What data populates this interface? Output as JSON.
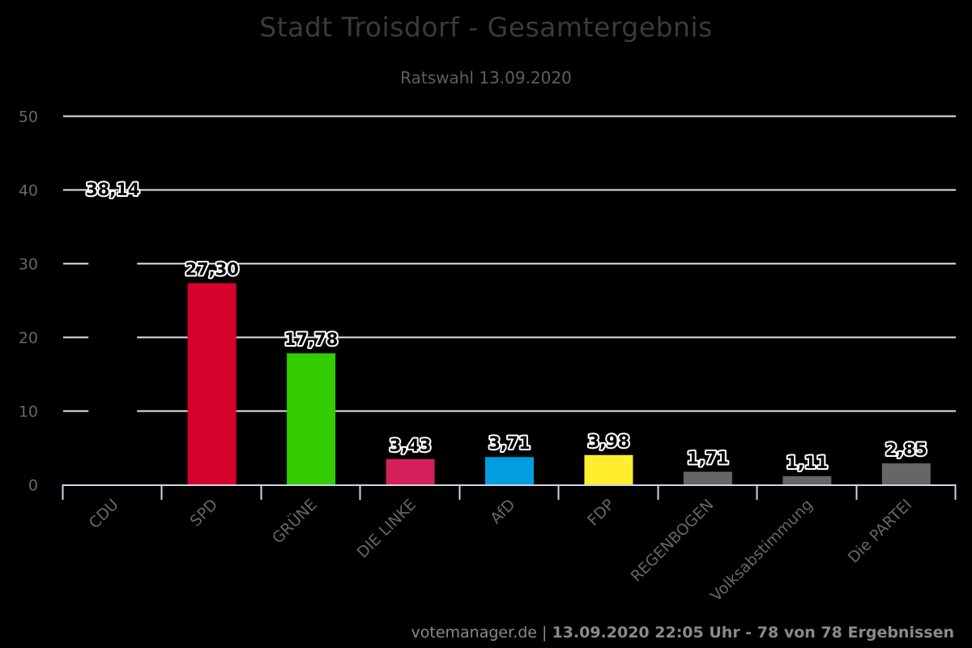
{
  "header": {
    "title": "Stadt Troisdorf - Gesamtergebnis",
    "subtitle": "Ratswahl 13.09.2020"
  },
  "footer": {
    "source": "votemanager.de",
    "separator": "|",
    "status": "13.09.2020 22:05 Uhr - 78 von 78 Ergebnissen"
  },
  "chart_data": {
    "type": "bar",
    "title": "Stadt Troisdorf - Gesamtergebnis",
    "subtitle": "Ratswahl 13.09.2020",
    "xlabel": "",
    "ylabel": "",
    "ylim": [
      0,
      50
    ],
    "yticks": [
      0,
      10,
      20,
      30,
      40,
      50
    ],
    "grid": true,
    "legend": "none",
    "categories": [
      "CDU",
      "SPD",
      "GRÜNE",
      "DIE LINKE",
      "AfD",
      "FDP",
      "REGENBOGEN",
      "Volksabstimmung",
      "Die PARTEI"
    ],
    "values": [
      38.14,
      27.3,
      17.78,
      3.43,
      3.71,
      3.98,
      1.71,
      1.11,
      2.85
    ],
    "value_labels": [
      "38,14",
      "27,30",
      "17,78",
      "3,43",
      "3,71",
      "3,98",
      "1,71",
      "1,11",
      "2,85"
    ],
    "colors": [
      "#000000",
      "#d6002c",
      "#33cc00",
      "#d4205a",
      "#009ee0",
      "#ffed2e",
      "#666666",
      "#666666",
      "#666666"
    ]
  }
}
